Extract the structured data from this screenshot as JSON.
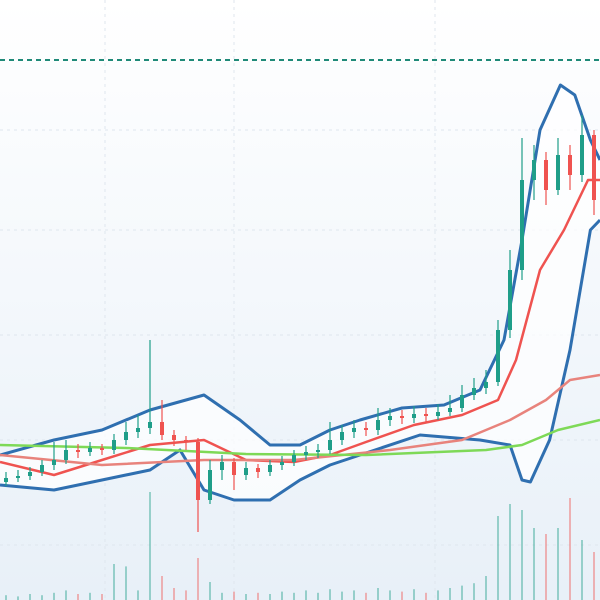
{
  "chart_data": {
    "type": "candlestick",
    "xlim": [
      -0.5,
      49.5
    ],
    "ylim": [
      0,
      600
    ],
    "xticks": [
      8.25,
      19,
      35.75
    ],
    "yticks": [
      55,
      160,
      265,
      370,
      470
    ],
    "grid": true,
    "up_color": "#1f9e89",
    "down_color": "#ef5350",
    "open": [
      118,
      122,
      124,
      128,
      135,
      140,
      150,
      148,
      152,
      150,
      160,
      168,
      172,
      178,
      165,
      160,
      158,
      100,
      130,
      138,
      125,
      132,
      128,
      135,
      138,
      145,
      148,
      150,
      160,
      168,
      172,
      170,
      180,
      184,
      182,
      186,
      184,
      188,
      192,
      205,
      212,
      218,
      270,
      330,
      420,
      440,
      410,
      445,
      425,
      465
    ],
    "high": [
      128,
      130,
      133,
      140,
      158,
      160,
      156,
      158,
      156,
      166,
      178,
      185,
      260,
      200,
      170,
      164,
      162,
      140,
      145,
      142,
      138,
      136,
      140,
      144,
      150,
      154,
      156,
      178,
      175,
      180,
      178,
      192,
      192,
      190,
      194,
      192,
      196,
      205,
      215,
      222,
      230,
      280,
      350,
      462,
      455,
      448,
      462,
      455,
      485,
      470
    ],
    "low": [
      114,
      118,
      120,
      124,
      130,
      136,
      142,
      144,
      145,
      146,
      155,
      162,
      166,
      160,
      154,
      150,
      68,
      96,
      120,
      110,
      120,
      122,
      124,
      130,
      134,
      140,
      142,
      146,
      155,
      162,
      164,
      165,
      174,
      176,
      177,
      178,
      180,
      184,
      188,
      200,
      206,
      214,
      262,
      320,
      400,
      395,
      405,
      410,
      418,
      385
    ],
    "close": [
      122,
      124,
      128,
      135,
      140,
      150,
      148,
      152,
      150,
      160,
      168,
      172,
      178,
      165,
      160,
      158,
      100,
      130,
      138,
      125,
      132,
      128,
      135,
      138,
      145,
      148,
      150,
      160,
      168,
      172,
      170,
      180,
      184,
      182,
      186,
      184,
      188,
      192,
      205,
      212,
      218,
      270,
      330,
      420,
      440,
      410,
      445,
      425,
      465,
      400
    ],
    "volume": [
      4,
      3,
      5,
      4,
      6,
      8,
      5,
      6,
      5,
      30,
      28,
      8,
      90,
      20,
      10,
      8,
      35,
      15,
      6,
      7,
      5,
      6,
      5,
      7,
      6,
      8,
      6,
      9,
      7,
      8,
      6,
      10,
      8,
      7,
      9,
      6,
      8,
      10,
      12,
      14,
      20,
      70,
      80,
      75,
      60,
      55,
      60,
      85,
      50,
      40
    ],
    "volume_ylim": [
      0,
      100
    ],
    "reference_line": {
      "value": 540,
      "color": "#1f8a78"
    },
    "lines": [
      {
        "color": "#2f6fb0",
        "x": [
          -0.5,
          4,
          8,
          12,
          16.5,
          19.5,
          22,
          24.5,
          27,
          29.5,
          33,
          36.5,
          39.5,
          41.5,
          43,
          44.5,
          46.2,
          47.4,
          48.7,
          49.5
        ],
        "values": [
          145,
          160,
          170,
          190,
          205,
          180,
          155,
          155,
          170,
          180,
          192,
          195,
          210,
          260,
          360,
          470,
          515,
          505,
          460,
          440
        ]
      },
      {
        "color": "#2f6fb0",
        "x": [
          -0.5,
          4,
          8,
          12,
          14.5,
          16.5,
          19,
          22,
          24.5,
          27,
          29.5,
          34.5,
          39.5,
          42,
          43,
          43.7,
          45.3,
          47,
          48.7,
          49.5
        ],
        "values": [
          115,
          110,
          120,
          130,
          150,
          110,
          100,
          100,
          120,
          135,
          145,
          165,
          160,
          155,
          120,
          118,
          160,
          250,
          370,
          380
        ]
      },
      {
        "color": "#ef5350",
        "x": [
          -0.5,
          4,
          8,
          12,
          16.5,
          20,
          24,
          27,
          30,
          34,
          38,
          41,
          42.5,
          44.5,
          46.5,
          48.5,
          49.5
        ],
        "values": [
          138,
          125,
          140,
          155,
          160,
          140,
          138,
          145,
          158,
          175,
          185,
          200,
          240,
          330,
          370,
          420,
          420
        ]
      },
      {
        "color": "#e8837c",
        "x": [
          -0.5,
          8,
          16.5,
          24,
          32,
          38,
          42,
          45,
          47,
          49.5
        ],
        "values": [
          145,
          135,
          140,
          140,
          150,
          160,
          180,
          200,
          220,
          225
        ]
      },
      {
        "color": "#7ed957",
        "x": [
          -0.5,
          10,
          20,
          30,
          40,
          43,
          46,
          49.5
        ],
        "values": [
          155,
          152,
          146,
          145,
          150,
          155,
          170,
          180
        ]
      }
    ]
  }
}
